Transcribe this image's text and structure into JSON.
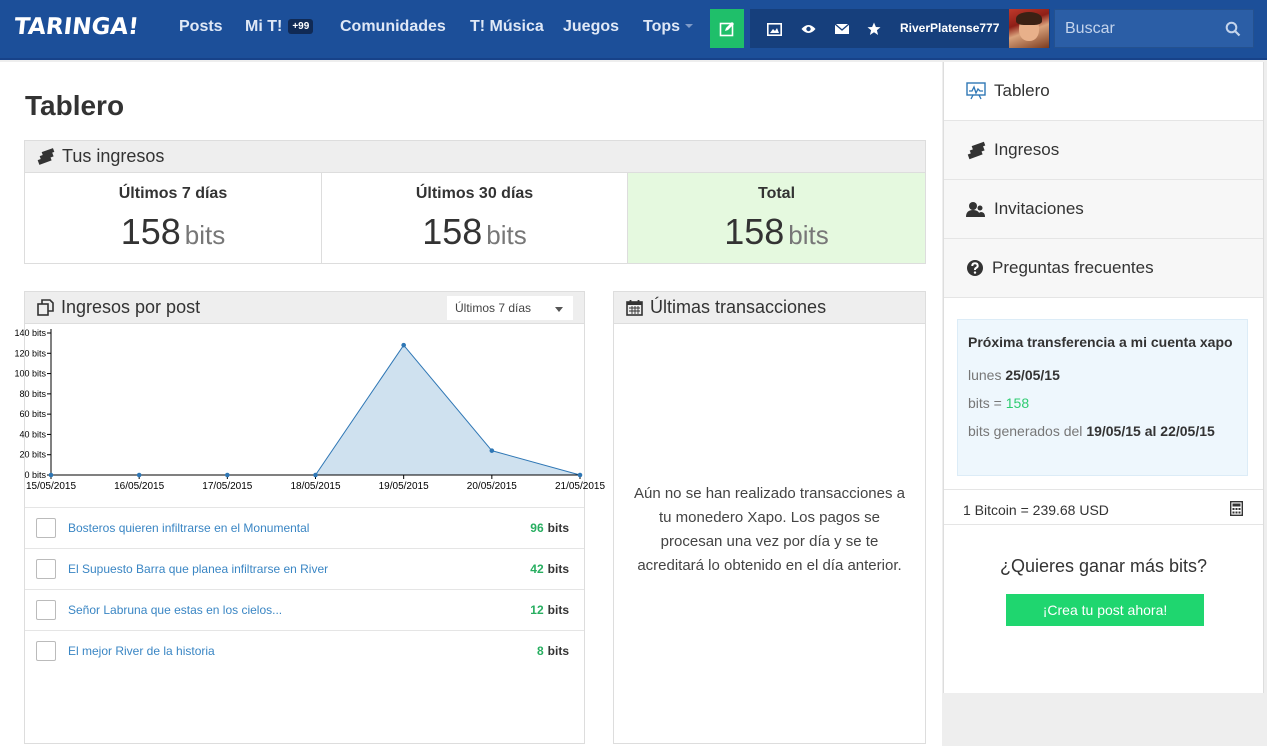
{
  "header": {
    "logo": "TARINGA!",
    "nav": [
      {
        "label": "Posts"
      },
      {
        "label": "Mi T!",
        "badge": "+99"
      },
      {
        "label": "Comunidades"
      },
      {
        "label": "T! Música"
      },
      {
        "label": "Juegos"
      },
      {
        "label": "Tops"
      }
    ],
    "username": "RiverPlatense777",
    "search_placeholder": "Buscar",
    "icons": [
      "edit-icon",
      "image-icon",
      "eye-icon",
      "mail-icon",
      "star-icon",
      "search-icon"
    ]
  },
  "page": {
    "title": "Tablero"
  },
  "income": {
    "title": "Tus ingresos",
    "stats": [
      {
        "label": "Últimos 7 días",
        "value": "158",
        "unit": "bits"
      },
      {
        "label": "Últimos 30 días",
        "value": "158",
        "unit": "bits"
      },
      {
        "label": "Total",
        "value": "158",
        "unit": "bits"
      }
    ]
  },
  "per_post": {
    "title": "Ingresos por post",
    "period": "Últimos 7 días",
    "posts": [
      {
        "title": "Bosteros quieren infiltrarse en el Monumental",
        "bits": "96",
        "unit": "bits"
      },
      {
        "title": "El Supuesto Barra que planea infiltrarse en River",
        "bits": "42",
        "unit": "bits"
      },
      {
        "title": "Señor Labruna que estas en los cielos...",
        "bits": "12",
        "unit": "bits"
      },
      {
        "title": "El mejor River de la historia",
        "bits": "8",
        "unit": "bits"
      }
    ]
  },
  "chart_data": {
    "type": "area",
    "x": [
      "15/05/2015",
      "16/05/2015",
      "17/05/2015",
      "18/05/2015",
      "19/05/2015",
      "20/05/2015",
      "21/05/2015"
    ],
    "values": [
      0,
      0,
      0,
      0,
      128,
      24,
      0
    ],
    "ylim": [
      0,
      140
    ],
    "y_tick_values": [
      0,
      20,
      40,
      60,
      80,
      100,
      120,
      140
    ],
    "y_tick_unit": "bits",
    "grid": false,
    "color": "#2f77b5",
    "fill": "#cfe1ef"
  },
  "transactions": {
    "title": "Últimas transacciones",
    "empty_message": "Aún no se han realizado transacciones a tu monedero Xapo. Los pagos se procesan una vez por día y se te acreditará lo obtenido en el día anterior."
  },
  "sidebar": {
    "menu": [
      {
        "label": "Tablero",
        "icon": "chart-icon"
      },
      {
        "label": "Ingresos",
        "icon": "money-icon"
      },
      {
        "label": "Invitaciones",
        "icon": "users-icon"
      },
      {
        "label": "Preguntas frecuentes",
        "icon": "question-icon"
      }
    ],
    "transfer": {
      "title": "Próxima transferencia a mi cuenta xapo",
      "date_label": "lunes",
      "date": "25/05/15",
      "bits_label": "bits =",
      "bits": "158",
      "range_label": "bits generados del",
      "range_from": "19/05/15",
      "range_sep": "al",
      "range_to": "22/05/15"
    },
    "rate": "1 Bitcoin = 239.68 USD",
    "cta_question": "¿Quieres ganar más bits?",
    "cta_button": "¡Crea tu post ahora!"
  },
  "colors": {
    "header_bg": "#1c4f99",
    "accent_green": "#1fd66f",
    "link_blue": "#3a86c4",
    "total_bg": "#e5f9df"
  }
}
